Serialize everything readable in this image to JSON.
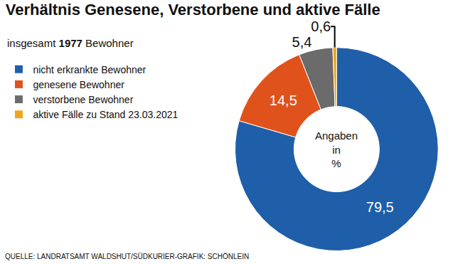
{
  "chart_data": {
    "type": "pie",
    "title": "Verhältnis Genesene, Verstorbene und aktive Fälle",
    "subtitle": "insgesamt 1977 Bewohner",
    "categories": [
      "nicht erkrankte Bewohner",
      "genesene Bewohner",
      "verstorbene Bewohner",
      "aktive Fälle zu Stand 23.03.2021"
    ],
    "values": [
      79.5,
      14.5,
      5.4,
      0.6
    ],
    "value_labels": [
      "79,5",
      "14,5",
      "5,4",
      "0,6"
    ],
    "colors": [
      "#1f5ea8",
      "#e0521b",
      "#6b6b6b",
      "#f2a51c"
    ],
    "data_labels": true,
    "legend": "top-left",
    "center_text": "Angaben in %",
    "source": "QUELLE: LANDRATSAMT WALDSHUT/SÜDKURIER-GRAFIK: SCHÖNLEIN"
  }
}
